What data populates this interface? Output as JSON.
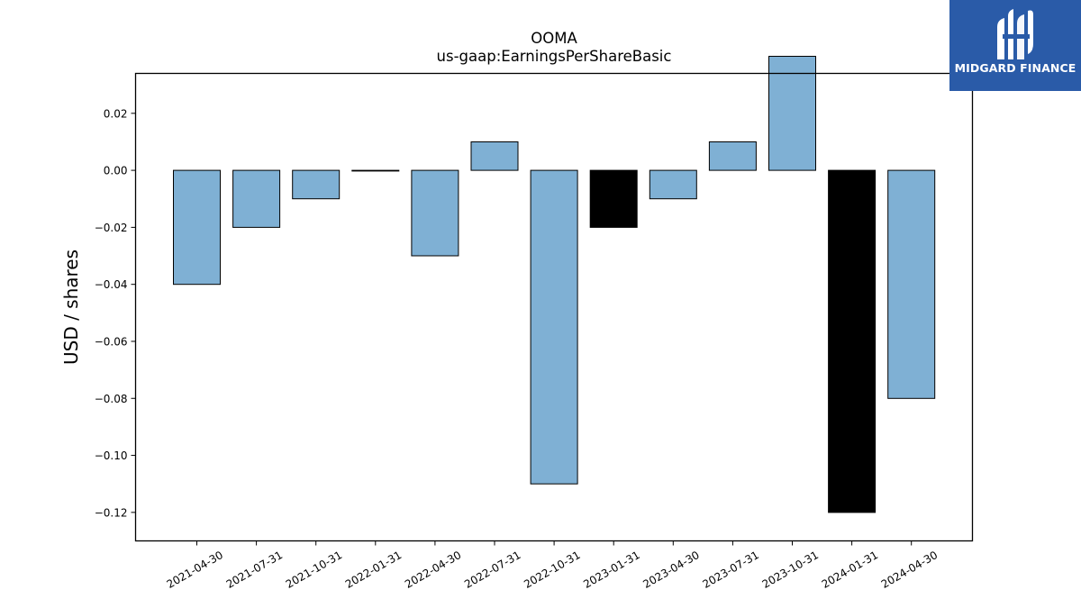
{
  "brand": {
    "name": "MIDGARD FINANCE",
    "icon": "midgard-logo-icon",
    "bg_color": "#2a5ba8"
  },
  "chart_data": {
    "type": "bar",
    "title": "OOMA",
    "subtitle": "us-gaap:EarningsPerShareBasic",
    "xlabel": "",
    "ylabel": "USD / shares",
    "categories": [
      "2021-04-30",
      "2021-07-31",
      "2021-10-31",
      "2022-01-31",
      "2022-04-30",
      "2022-07-31",
      "2022-10-31",
      "2023-01-31",
      "2023-04-30",
      "2023-07-31",
      "2023-10-31",
      "2024-01-31",
      "2024-04-30"
    ],
    "values": [
      -0.04,
      -0.02,
      -0.01,
      0.0,
      -0.03,
      0.01,
      -0.11,
      -0.02,
      -0.01,
      0.01,
      0.04,
      -0.12,
      -0.08
    ],
    "colors": [
      "#7fb0d4",
      "#7fb0d4",
      "#7fb0d4",
      "#7fb0d4",
      "#7fb0d4",
      "#7fb0d4",
      "#7fb0d4",
      "#000000",
      "#7fb0d4",
      "#7fb0d4",
      "#7fb0d4",
      "#000000",
      "#7fb0d4"
    ],
    "ylim": [
      -0.13,
      0.034
    ],
    "yticks": [
      0.02,
      0.0,
      -0.02,
      -0.04,
      -0.06,
      -0.08,
      -0.1,
      -0.12
    ],
    "ytick_labels": [
      "0.02",
      "0.00",
      "−0.02",
      "−0.04",
      "−0.06",
      "−0.08",
      "−0.10",
      "−0.12"
    ],
    "grid": false,
    "legend": "none"
  }
}
